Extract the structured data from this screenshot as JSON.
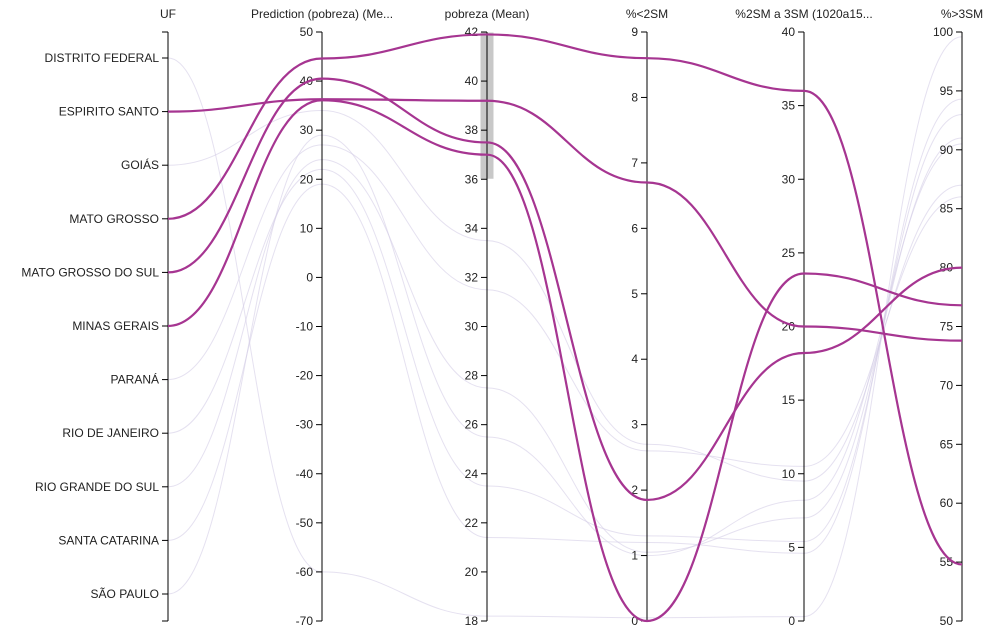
{
  "chart_data": {
    "type": "parallel-coordinates",
    "axes": [
      {
        "key": "uf",
        "title": "UF",
        "type": "categorical",
        "categories": [
          "DISTRITO FEDERAL",
          "ESPIRITO SANTO",
          "GOIÁS",
          "MATO GROSSO",
          "MATO GROSSO DO SUL",
          "MINAS GERAIS",
          "PARANÁ",
          "RIO DE JANEIRO",
          "RIO GRANDE DO SUL",
          "SANTA CATARINA",
          "SÃO PAULO"
        ]
      },
      {
        "key": "prediction",
        "title": "Prediction (pobreza) (Me...",
        "type": "numeric",
        "domain": [
          -70,
          50
        ],
        "ticks": [
          "50",
          "40",
          "30",
          "20",
          "10",
          "0",
          "-10",
          "-20",
          "-30",
          "-40",
          "-50",
          "-60",
          "-70"
        ]
      },
      {
        "key": "pobreza",
        "title": "pobreza (Mean)",
        "type": "numeric",
        "domain": [
          18,
          42
        ],
        "ticks": [
          "42",
          "40",
          "38",
          "36",
          "34",
          "32",
          "30",
          "28",
          "26",
          "24",
          "22",
          "20",
          "18"
        ],
        "brush": [
          36,
          42
        ]
      },
      {
        "key": "lt2sm",
        "title": "%<2SM",
        "type": "numeric",
        "domain": [
          0,
          9
        ],
        "ticks": [
          "9",
          "8",
          "7",
          "6",
          "5",
          "4",
          "3",
          "2",
          "1",
          "0"
        ]
      },
      {
        "key": "sm2to3",
        "title": "%2SM a 3SM (1020a15...",
        "type": "numeric",
        "domain": [
          0,
          40
        ],
        "ticks": [
          "40",
          "35",
          "30",
          "25",
          "20",
          "15",
          "10",
          "5",
          "0"
        ]
      },
      {
        "key": "gt3sm",
        "title": "%>3SM",
        "type": "numeric",
        "domain": [
          50,
          100
        ],
        "ticks": [
          "100",
          "95",
          "90",
          "85",
          "80",
          "75",
          "70",
          "65",
          "60",
          "55",
          "50"
        ]
      }
    ],
    "series": [
      {
        "uf": "ESPIRITO SANTO",
        "prediction": 36.3,
        "pobreza": 39.2,
        "lt2sm": 6.7,
        "sm2to3": 20,
        "gt3sm": 73.8,
        "highlighted": true
      },
      {
        "uf": "MATO GROSSO",
        "prediction": 44.6,
        "pobreza": 41.9,
        "lt2sm": 8.6,
        "sm2to3": 36,
        "gt3sm": 54.8,
        "highlighted": true
      },
      {
        "uf": "MATO GROSSO DO SUL",
        "prediction": 40.5,
        "pobreza": 37.5,
        "lt2sm": 1.85,
        "sm2to3": 18.2,
        "gt3sm": 80.0,
        "highlighted": true
      },
      {
        "uf": "MINAS GERAIS",
        "prediction": 36.1,
        "pobreza": 37.0,
        "lt2sm": 0.0,
        "sm2to3": 23.6,
        "gt3sm": 76.8,
        "highlighted": true
      },
      {
        "uf": "DISTRITO FEDERAL",
        "prediction": -60,
        "pobreza": 18.2,
        "lt2sm": 0.05,
        "sm2to3": 0.3,
        "gt3sm": 99.6,
        "highlighted": false
      },
      {
        "uf": "GOIÁS",
        "prediction": 34,
        "pobreza": 33.5,
        "lt2sm": 2.7,
        "sm2to3": 9.5,
        "gt3sm": 87,
        "highlighted": false
      },
      {
        "uf": "PARANÁ",
        "prediction": 27,
        "pobreza": 31.5,
        "lt2sm": 2.6,
        "sm2to3": 10.5,
        "gt3sm": 86,
        "highlighted": false
      },
      {
        "uf": "RIO DE JANEIRO",
        "prediction": 22,
        "pobreza": 23.5,
        "lt2sm": 1.3,
        "sm2to3": 5.4,
        "gt3sm": 93,
        "highlighted": false
      },
      {
        "uf": "RIO GRANDE DO SUL",
        "prediction": 24,
        "pobreza": 27.5,
        "lt2sm": 1.05,
        "sm2to3": 7,
        "gt3sm": 91,
        "highlighted": false
      },
      {
        "uf": "SANTA CATARINA",
        "prediction": 19,
        "pobreza": 21.4,
        "lt2sm": 1.2,
        "sm2to3": 4.6,
        "gt3sm": 94.3,
        "highlighted": false
      },
      {
        "uf": "SÃO PAULO",
        "prediction": 29,
        "pobreza": 25.5,
        "lt2sm": 1.0,
        "sm2to3": 8.2,
        "gt3sm": 90.5,
        "highlighted": false
      }
    ],
    "colors": {
      "highlight": "#a63591",
      "background": "#d4cde6",
      "brush": "#c8c8c8"
    }
  }
}
